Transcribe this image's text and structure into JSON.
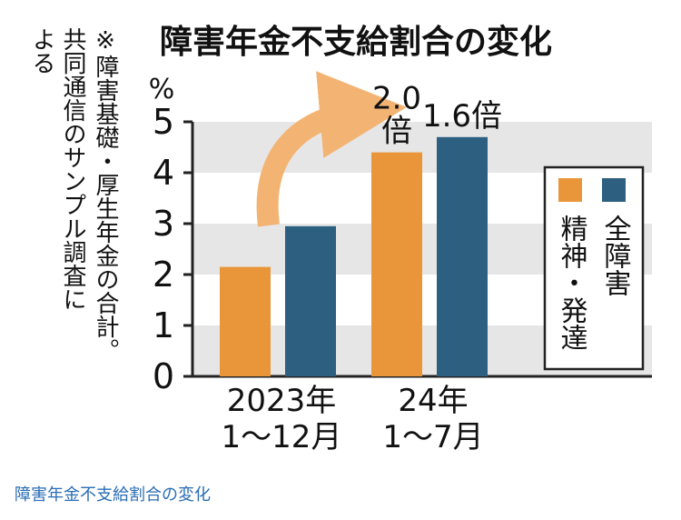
{
  "note": {
    "mark": "※",
    "lines": [
      "障害基礎・厚生年金の合計。",
      "共同通信のサンプル調査に",
      "よる"
    ]
  },
  "caption": "障害年金不支給割合の変化",
  "colors": {
    "orange": "#e9963a",
    "blue": "#2c5f80",
    "band": "#e6e6e6",
    "arrow": "#f3b473"
  },
  "chart_data": {
    "type": "bar",
    "title": "障害年金不支給割合の変化",
    "ylabel": "%",
    "ylim": [
      0,
      5
    ],
    "yticks": [
      "0",
      "1",
      "2",
      "3",
      "4",
      "5"
    ],
    "categories": [
      [
        "2023年",
        "1～12月"
      ],
      [
        "24年",
        "1～7月"
      ]
    ],
    "series": [
      {
        "name": "精神・発達",
        "values": [
          2.15,
          4.4
        ]
      },
      {
        "name": "全障害",
        "values": [
          2.95,
          4.7
        ]
      }
    ],
    "annotations": [
      {
        "series": 0,
        "category": 1,
        "lines": [
          "2.0",
          "倍"
        ]
      },
      {
        "series": 1,
        "category": 1,
        "lines": [
          "1.6倍"
        ]
      }
    ],
    "legend": "right",
    "grid": "bands"
  }
}
